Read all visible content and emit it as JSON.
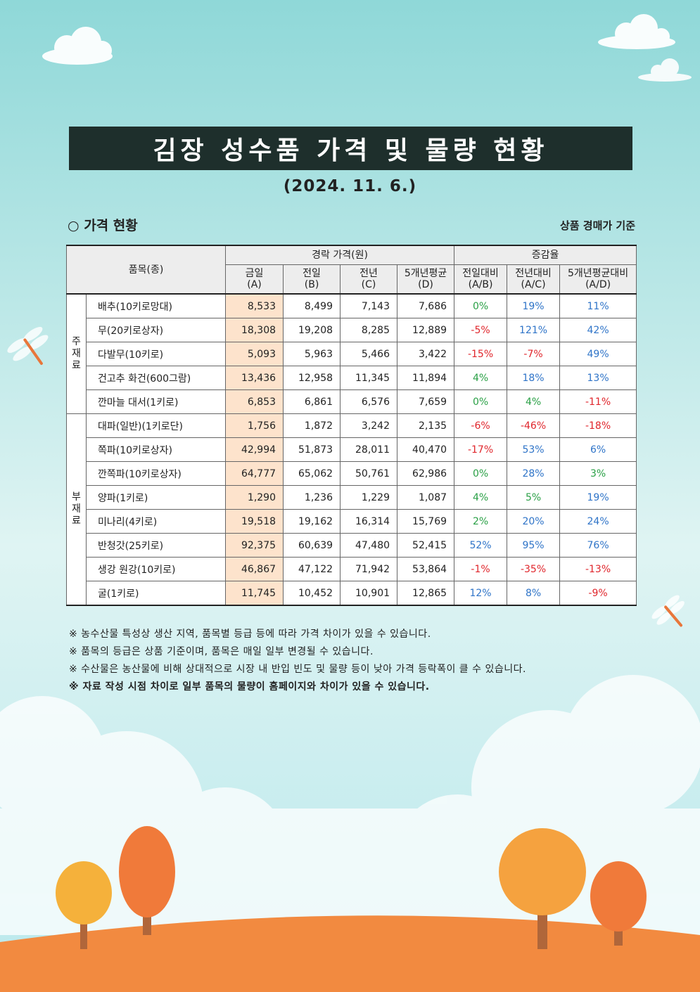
{
  "header": {
    "title": "김장 성수품 가격 및 물량 현황",
    "date": "(2024. 11. 6.)"
  },
  "section": {
    "title": "○ 가격 현황",
    "basis": "상품 경매가 기준"
  },
  "table": {
    "headers": {
      "item": "품목(종)",
      "price_group": "경락 가격(원)",
      "rate_group": "증감율",
      "today": [
        "금일",
        "(A)"
      ],
      "prev_day": [
        "전일",
        "(B)"
      ],
      "prev_year": [
        "전년",
        "(C)"
      ],
      "avg5": [
        "5개년평균",
        "(D)"
      ],
      "vs_day": [
        "전일대비",
        "(A/B)"
      ],
      "vs_year": [
        "전년대비",
        "(A/C)"
      ],
      "vs_avg5": [
        "5개년평균대비",
        "(A/D)"
      ]
    },
    "groups": [
      {
        "label": "주\n재\n료",
        "rows": [
          {
            "name": "배추(10키로망대)",
            "a": "8,533",
            "b": "8,499",
            "c": "7,143",
            "d": "7,686",
            "ab": "0%",
            "ac": "19%",
            "ad": "11%"
          },
          {
            "name": "무(20키로상자)",
            "a": "18,308",
            "b": "19,208",
            "c": "8,285",
            "d": "12,889",
            "ab": "-5%",
            "ac": "121%",
            "ad": "42%"
          },
          {
            "name": "다발무(10키로)",
            "a": "5,093",
            "b": "5,963",
            "c": "5,466",
            "d": "3,422",
            "ab": "-15%",
            "ac": "-7%",
            "ad": "49%"
          },
          {
            "name": "건고추 화건(600그람)",
            "a": "13,436",
            "b": "12,958",
            "c": "11,345",
            "d": "11,894",
            "ab": "4%",
            "ac": "18%",
            "ad": "13%"
          },
          {
            "name": "깐마늘 대서(1키로)",
            "a": "6,853",
            "b": "6,861",
            "c": "6,576",
            "d": "7,659",
            "ab": "0%",
            "ac": "4%",
            "ad": "-11%"
          }
        ]
      },
      {
        "label": "부\n재\n료",
        "rows": [
          {
            "name": "대파(일반)(1키로단)",
            "a": "1,756",
            "b": "1,872",
            "c": "3,242",
            "d": "2,135",
            "ab": "-6%",
            "ac": "-46%",
            "ad": "-18%"
          },
          {
            "name": "쪽파(10키로상자)",
            "a": "42,994",
            "b": "51,873",
            "c": "28,011",
            "d": "40,470",
            "ab": "-17%",
            "ac": "53%",
            "ad": "6%"
          },
          {
            "name": "깐쪽파(10키로상자)",
            "a": "64,777",
            "b": "65,062",
            "c": "50,761",
            "d": "62,986",
            "ab": "0%",
            "ac": "28%",
            "ad": "3%"
          },
          {
            "name": "양파(1키로)",
            "a": "1,290",
            "b": "1,236",
            "c": "1,229",
            "d": "1,087",
            "ab": "4%",
            "ac": "5%",
            "ad": "19%"
          },
          {
            "name": "미나리(4키로)",
            "a": "19,518",
            "b": "19,162",
            "c": "16,314",
            "d": "15,769",
            "ab": "2%",
            "ac": "20%",
            "ad": "24%"
          },
          {
            "name": "반청갓(25키로)",
            "a": "92,375",
            "b": "60,639",
            "c": "47,480",
            "d": "52,415",
            "ab": "52%",
            "ac": "95%",
            "ad": "76%"
          },
          {
            "name": "생강 원강(10키로)",
            "a": "46,867",
            "b": "47,122",
            "c": "71,942",
            "d": "53,864",
            "ab": "-1%",
            "ac": "-35%",
            "ad": "-13%"
          },
          {
            "name": "굴(1키로)",
            "a": "11,745",
            "b": "10,452",
            "c": "10,901",
            "d": "12,865",
            "ab": "12%",
            "ac": "8%",
            "ad": "-9%"
          }
        ]
      }
    ]
  },
  "notes": [
    "※ 농수산물 특성상 생산 지역, 품목별 등급 등에 따라 가격 차이가 있을 수 있습니다.",
    "※ 품목의 등급은 상품 기준이며, 품목은 매일 일부 변경될 수 있습니다.",
    "※ 수산물은 농산물에 비해 상대적으로 시장 내 반입 빈도 및 물량 등이 낮아 가격 등락폭이 클 수 있습니다.",
    "※ 자료 작성 시점 차이로 일부 품목의 물량이 홈페이지와 차이가 있을 수 있습니다."
  ],
  "colors": {
    "title_bar": "#1e2f2c",
    "today_highlight": "#fde3cc",
    "positive_green": "#2aa046",
    "positive_blue": "#2f74c8",
    "negative_red": "#e0262c",
    "sky_top": "#8fd8d8",
    "ground": "#f28a40"
  }
}
